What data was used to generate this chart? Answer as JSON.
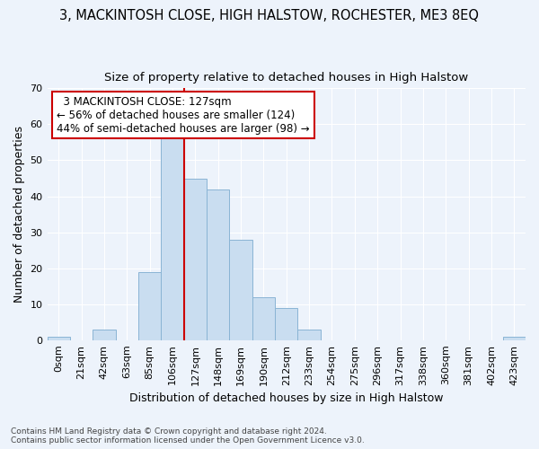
{
  "title1": "3, MACKINTOSH CLOSE, HIGH HALSTOW, ROCHESTER, ME3 8EQ",
  "title2": "Size of property relative to detached houses in High Halstow",
  "xlabel": "Distribution of detached houses by size in High Halstow",
  "ylabel": "Number of detached properties",
  "footnote": "Contains HM Land Registry data © Crown copyright and database right 2024.\nContains public sector information licensed under the Open Government Licence v3.0.",
  "bar_labels": [
    "0sqm",
    "21sqm",
    "42sqm",
    "63sqm",
    "85sqm",
    "106sqm",
    "127sqm",
    "148sqm",
    "169sqm",
    "190sqm",
    "212sqm",
    "233sqm",
    "254sqm",
    "275sqm",
    "296sqm",
    "317sqm",
    "338sqm",
    "360sqm",
    "381sqm",
    "402sqm",
    "423sqm"
  ],
  "bar_values": [
    1,
    0,
    3,
    0,
    19,
    58,
    45,
    42,
    28,
    12,
    9,
    3,
    0,
    0,
    0,
    0,
    0,
    0,
    0,
    0,
    1
  ],
  "bar_color": "#c9ddf0",
  "bar_edge_color": "#8ab4d4",
  "property_line_idx": 6,
  "property_line_label": "3 MACKINTOSH CLOSE: 127sqm",
  "property_line_color": "#cc0000",
  "annotation_line1": "← 56% of detached houses are smaller (124)",
  "annotation_line2": "44% of semi-detached houses are larger (98) →",
  "annotation_box_color": "#ffffff",
  "annotation_box_edge_color": "#cc0000",
  "ylim": [
    0,
    70
  ],
  "yticks": [
    0,
    10,
    20,
    30,
    40,
    50,
    60,
    70
  ],
  "bg_color": "#edf3fb",
  "plot_bg_color": "#edf3fb",
  "grid_color": "#ffffff",
  "title_fontsize": 10.5,
  "subtitle_fontsize": 9.5,
  "axis_label_fontsize": 9,
  "tick_fontsize": 8,
  "annot_fontsize": 8.5
}
